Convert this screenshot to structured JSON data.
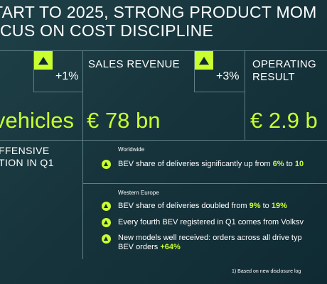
{
  "header": {
    "title_line1": "TART TO 2025, STRONG PRODUCT MOM",
    "title_line2": "CUS ON COST DISCIPLINE"
  },
  "kpis": [
    {
      "label_line1": "",
      "label_line2": "",
      "change": "+1%",
      "value": "vehicles"
    },
    {
      "label_line1": "SALES REVENUE",
      "label_line2": "",
      "change": "+3%",
      "value": "€ 78 bn"
    },
    {
      "label_line1": "OPERATING",
      "label_line2": "RESULT",
      "change": "",
      "value": "€ 2.9 b"
    }
  ],
  "offensive": {
    "line1": "FFENSIVE",
    "line2": "TION IN Q1"
  },
  "worldwide": {
    "region": "Worldwide",
    "bullets": [
      {
        "pre": "BEV share of deliveries significantly up from ",
        "h1": "6%",
        "mid": " to ",
        "h2": "10"
      }
    ]
  },
  "western_europe": {
    "region": "Western Europe",
    "bullets": [
      {
        "pre": "BEV share of deliveries doubled from ",
        "h1": "9%",
        "mid": " to ",
        "h2": "19%"
      },
      {
        "text": "Every fourth BEV registered in Q1 comes from Volksv"
      },
      {
        "line1": "New models well received: orders across all drive typ",
        "line2_pre": "BEV orders ",
        "line2_hl": "+64%"
      }
    ]
  },
  "footnote": "1)  Based on new disclosure log",
  "colors": {
    "accent": "#c9ff2f",
    "background": "#17343c",
    "divider": "#5f7f86"
  },
  "icons": [
    "triangle-up-icon"
  ]
}
